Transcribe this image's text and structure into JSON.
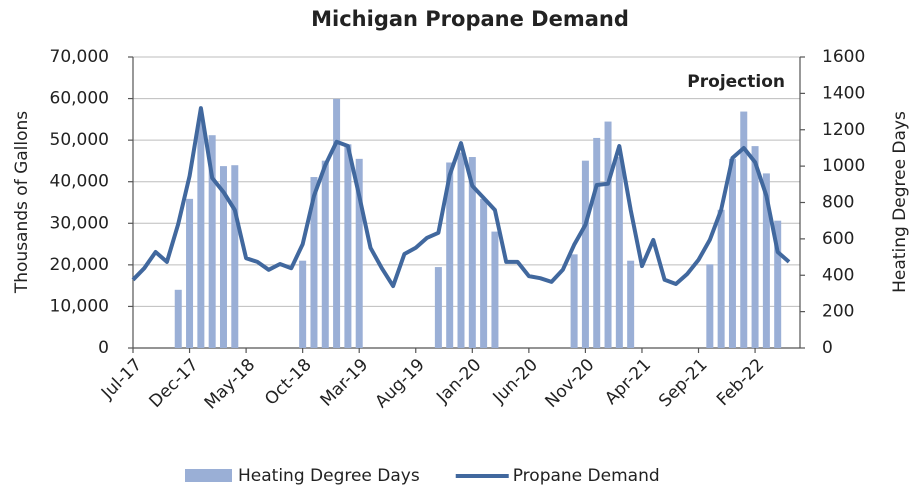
{
  "chart_data": {
    "type": "combo",
    "title": "Michigan Propane Demand",
    "y_label": "Thousands of Gallons",
    "y2_label": "Heating Degree Days",
    "annotation": "Projection",
    "categories": [
      "Jul-17",
      null,
      null,
      null,
      null,
      "Dec-17",
      null,
      null,
      null,
      null,
      "May-18",
      null,
      null,
      null,
      null,
      "Oct-18",
      null,
      null,
      null,
      null,
      "Mar-19",
      null,
      null,
      null,
      null,
      "Aug-19",
      null,
      null,
      null,
      null,
      "Jan-20",
      null,
      null,
      null,
      null,
      "Jun-20",
      null,
      null,
      null,
      null,
      "Nov-20",
      null,
      null,
      null,
      null,
      "Apr-21",
      null,
      null,
      null,
      null,
      "Sep-21",
      null,
      null,
      null,
      null,
      "Feb-22",
      null,
      null,
      null
    ],
    "series": [
      {
        "name": "Heating Degree Days",
        "type": "bar",
        "axis": "y2",
        "color": "#9aafd6",
        "values": [
          0,
          0,
          0,
          0,
          320,
          820,
          1260,
          1170,
          1000,
          1005,
          0,
          0,
          0,
          0,
          0,
          480,
          940,
          1030,
          1370,
          1120,
          1040,
          0,
          0,
          0,
          0,
          0,
          0,
          445,
          1020,
          1075,
          1050,
          820,
          640,
          0,
          0,
          0,
          0,
          0,
          0,
          515,
          1030,
          1155,
          1245,
          1050,
          480,
          0,
          0,
          0,
          0,
          0,
          0,
          460,
          760,
          1040,
          1300,
          1110,
          960,
          700,
          0
        ]
      },
      {
        "name": "Propane Demand",
        "type": "line",
        "axis": "y",
        "color": "#41689e",
        "values": [
          16400,
          19200,
          23100,
          20700,
          29800,
          41400,
          57700,
          40900,
          37500,
          33200,
          21600,
          20700,
          18800,
          20200,
          19200,
          25000,
          36600,
          44000,
          49600,
          48600,
          36600,
          24100,
          19200,
          14900,
          22600,
          24100,
          26500,
          27700,
          41600,
          49300,
          39000,
          36100,
          33200,
          20700,
          20700,
          17300,
          16800,
          15900,
          18800,
          24800,
          29600,
          39200,
          39500,
          48600,
          33200,
          19700,
          26000,
          16400,
          15400,
          17800,
          21200,
          26000,
          33200,
          45700,
          48100,
          44700,
          36600,
          23100,
          20700
        ]
      }
    ],
    "ylim": [
      0,
      70000
    ],
    "yticks": [
      {
        "value": 0,
        "label": "0"
      },
      {
        "value": 10000,
        "label": "10,000"
      },
      {
        "value": 20000,
        "label": "20,000"
      },
      {
        "value": 30000,
        "label": "30,000"
      },
      {
        "value": 40000,
        "label": "40,000"
      },
      {
        "value": 50000,
        "label": "50,000"
      },
      {
        "value": 60000,
        "label": "60,000"
      },
      {
        "value": 70000,
        "label": "70,000"
      }
    ],
    "y2lim": [
      0,
      1600
    ],
    "y2ticks": [
      0,
      200,
      400,
      600,
      800,
      1000,
      1200,
      1400,
      1600
    ],
    "grid": true,
    "legend": "bottom"
  }
}
